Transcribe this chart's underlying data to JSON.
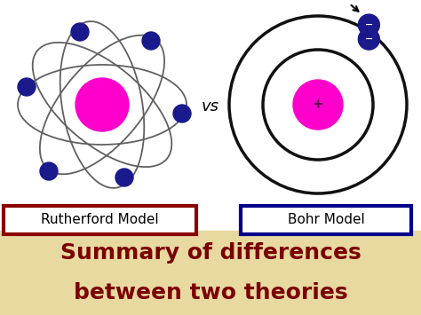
{
  "bg_white": "#ffffff",
  "bg_tan": "#e8d9a0",
  "rutherford_nucleus_color": "#ff00cc",
  "bohr_nucleus_color": "#ff00cc",
  "electron_color": "#1a1a8c",
  "orbit_color": "#606060",
  "bohr_orbit_color": "#111111",
  "vs_text": "vs",
  "rutherford_label": "Rutherford Model",
  "bohr_label": "Bohr Model",
  "rutherford_box_color": "#8b0000",
  "bohr_box_color": "#00008b",
  "summary_line1": "Summary of differences",
  "summary_line2": "between two theories",
  "summary_color": "#7a0000",
  "label_fontsize": 11,
  "summary_fontsize": 18,
  "vs_fontsize": 13
}
